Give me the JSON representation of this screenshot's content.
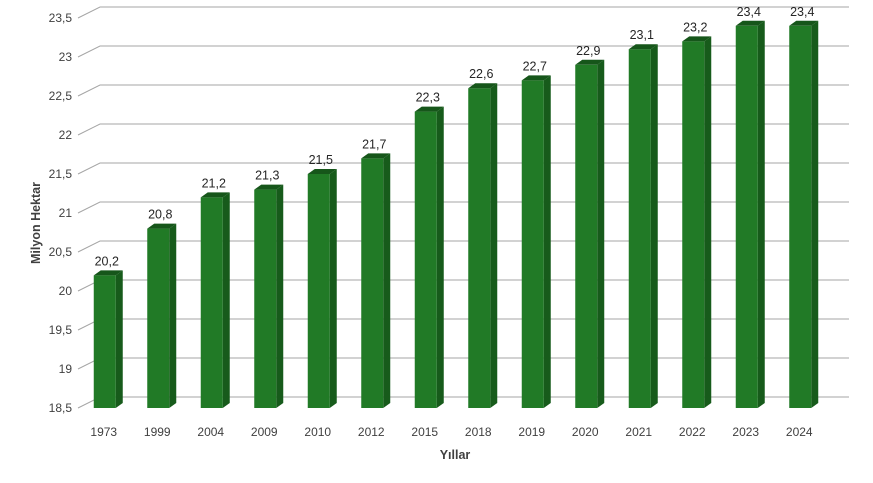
{
  "chart_data": {
    "type": "bar",
    "title": "",
    "xlabel": "Yıllar",
    "ylabel": "Milyon Hektar",
    "categories": [
      "1973",
      "1999",
      "2004",
      "2009",
      "2010",
      "2012",
      "2015",
      "2018",
      "2019",
      "2020",
      "2021",
      "2022",
      "2023",
      "2024"
    ],
    "values": [
      20.2,
      20.8,
      21.2,
      21.3,
      21.5,
      21.7,
      22.3,
      22.6,
      22.7,
      22.9,
      23.1,
      23.2,
      23.4,
      23.4
    ],
    "value_labels": [
      "20,2",
      "20,8",
      "21,2",
      "21,3",
      "21,5",
      "21,7",
      "22,3",
      "22,6",
      "22,7",
      "22,9",
      "23,1",
      "23,2",
      "23,4",
      "23,4"
    ],
    "ylim": [
      18.5,
      23.5
    ],
    "yticks": [
      18.5,
      19,
      19.5,
      20,
      20.5,
      21,
      21.5,
      22,
      22.5,
      23,
      23.5
    ],
    "ytick_labels": [
      "18,5",
      "19",
      "19,5",
      "20",
      "20,5",
      "21",
      "21,5",
      "22",
      "22,5",
      "23",
      "23,5"
    ],
    "grid": true,
    "legend": "none",
    "colors": {
      "bar_front": "#217a26",
      "bar_side": "#175b1b",
      "bar_top": "#16561a",
      "grid": "#a6a6a6"
    }
  }
}
